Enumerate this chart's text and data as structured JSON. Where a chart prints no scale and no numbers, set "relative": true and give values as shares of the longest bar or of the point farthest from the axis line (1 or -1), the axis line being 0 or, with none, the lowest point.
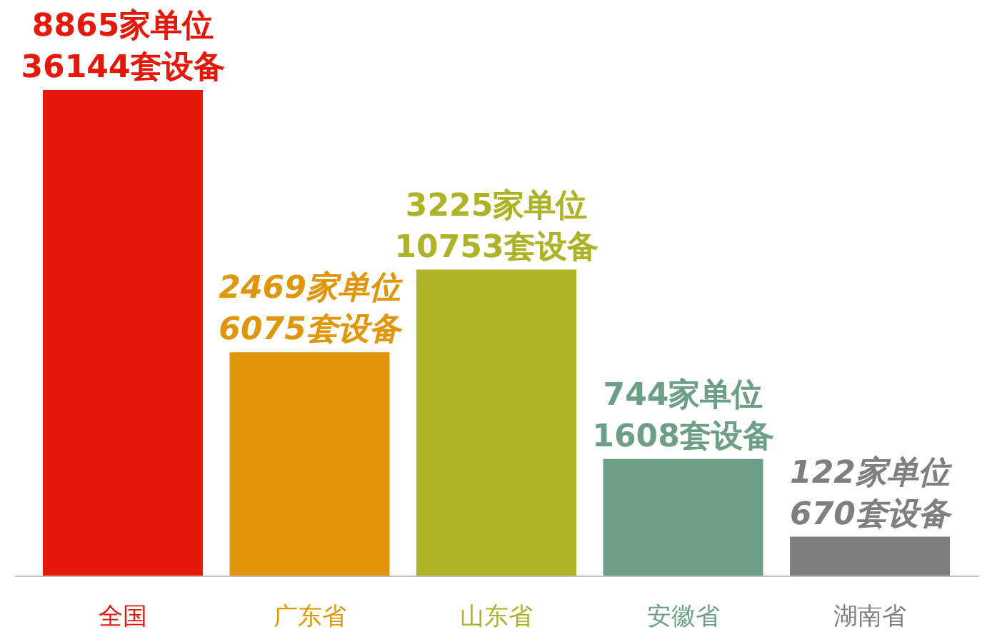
{
  "chart_data": {
    "type": "bar",
    "relative": true,
    "categories": [
      "全国",
      "广东省",
      "山东省",
      "安徽省",
      "湖南省"
    ],
    "values": [
      1,
      0.46,
      0.63,
      0.24,
      0.08
    ],
    "colors": [
      "#e5190a",
      "#e0960a",
      "#aeb226",
      "#6d9f88",
      "#7f7f7f"
    ],
    "annotations": [
      {
        "text": "8865家单位\n36144套设备",
        "x": "全国",
        "y": 1
      },
      {
        "text": "2469家单位\n6075套设备",
        "x": "广东省",
        "y": 0.46
      },
      {
        "text": "3225家单位\n10753套设备",
        "x": "山东省",
        "y": 0.63
      },
      {
        "text": "744家单位\n1608套设备",
        "x": "安徽省",
        "y": 0.24
      },
      {
        "text": "122家单位\n670套设备",
        "x": "湖南省",
        "y": 0.08
      }
    ]
  }
}
